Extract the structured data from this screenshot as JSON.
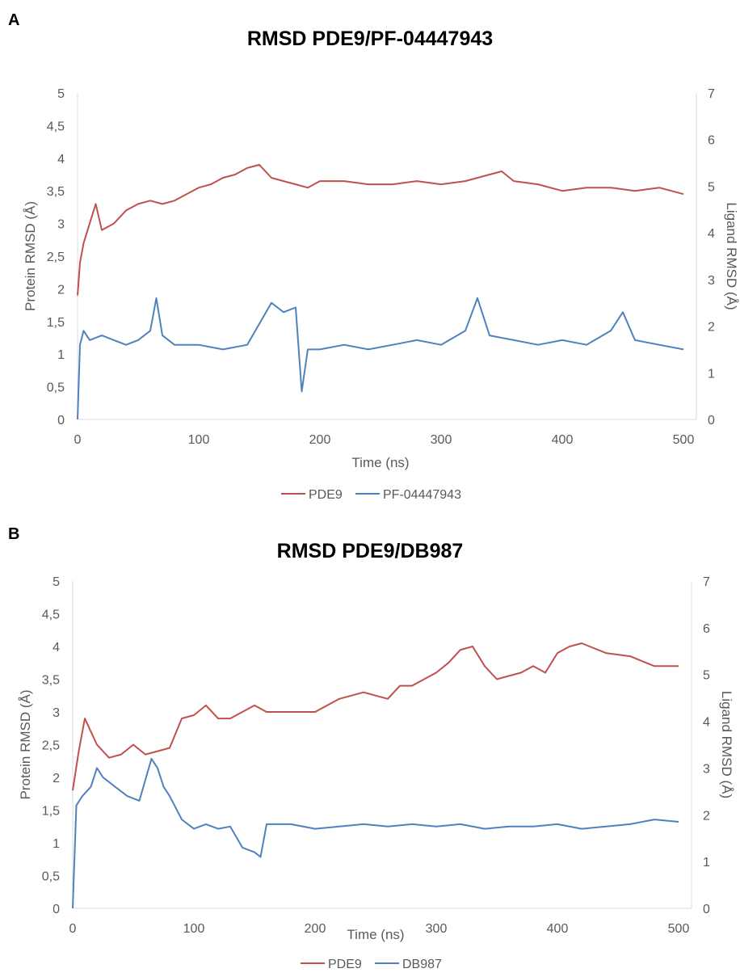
{
  "chart_data": [
    {
      "panel": "A",
      "type": "line",
      "title": "RMSD PDE9/PF-04447943",
      "xlabel": "Time (ns)",
      "ylabel_left": "Protein RMSD (Å)",
      "ylabel_right": "Ligand RMSD (Å)",
      "xlim": [
        0,
        500
      ],
      "ylim_left": [
        0,
        5
      ],
      "ylim_right": [
        0,
        7
      ],
      "x_ticks": [
        "0",
        "100",
        "200",
        "300",
        "400",
        "500"
      ],
      "y_left_ticks": [
        "0",
        "0,5",
        "1",
        "1,5",
        "2",
        "2,5",
        "3",
        "3,5",
        "4",
        "4,5",
        "5"
      ],
      "y_right_ticks": [
        "0",
        "1",
        "2",
        "3",
        "4",
        "5",
        "6",
        "7"
      ],
      "legend_position": "bottom",
      "series": [
        {
          "name": "PDE9",
          "axis": "left",
          "color": "#C0504D",
          "x": [
            0,
            2,
            5,
            10,
            15,
            20,
            30,
            40,
            50,
            60,
            70,
            80,
            90,
            100,
            110,
            120,
            130,
            140,
            150,
            160,
            170,
            180,
            190,
            200,
            220,
            240,
            260,
            280,
            300,
            320,
            340,
            350,
            360,
            380,
            400,
            420,
            440,
            460,
            480,
            500
          ],
          "values": [
            1.9,
            2.4,
            2.7,
            3.0,
            3.3,
            2.9,
            3.0,
            3.2,
            3.3,
            3.35,
            3.3,
            3.35,
            3.45,
            3.55,
            3.6,
            3.7,
            3.75,
            3.85,
            3.9,
            3.7,
            3.65,
            3.6,
            3.55,
            3.65,
            3.65,
            3.6,
            3.6,
            3.65,
            3.6,
            3.65,
            3.75,
            3.8,
            3.65,
            3.6,
            3.5,
            3.55,
            3.55,
            3.5,
            3.55,
            3.45
          ]
        },
        {
          "name": "PF-04447943",
          "axis": "right",
          "color": "#4F81BD",
          "x": [
            0,
            2,
            5,
            10,
            20,
            30,
            40,
            50,
            60,
            65,
            70,
            80,
            100,
            120,
            140,
            160,
            170,
            180,
            185,
            190,
            200,
            220,
            240,
            260,
            280,
            300,
            320,
            330,
            340,
            360,
            380,
            400,
            420,
            440,
            450,
            460,
            480,
            500
          ],
          "values": [
            0.0,
            1.6,
            1.9,
            1.7,
            1.8,
            1.7,
            1.6,
            1.7,
            1.9,
            2.6,
            1.8,
            1.6,
            1.6,
            1.5,
            1.6,
            2.5,
            2.3,
            2.4,
            0.6,
            1.5,
            1.5,
            1.6,
            1.5,
            1.6,
            1.7,
            1.6,
            1.9,
            2.6,
            1.8,
            1.7,
            1.6,
            1.7,
            1.6,
            1.9,
            2.3,
            1.7,
            1.6,
            1.5
          ]
        }
      ]
    },
    {
      "panel": "B",
      "type": "line",
      "title": "RMSD PDE9/DB987",
      "xlabel": "Time (ns)",
      "ylabel_left": "Protein RMSD (Å)",
      "ylabel_right": "Ligand RMSD (Å)",
      "xlim": [
        0,
        500
      ],
      "ylim_left": [
        0,
        5
      ],
      "ylim_right": [
        0,
        7
      ],
      "x_ticks": [
        "0",
        "100",
        "200",
        "300",
        "400",
        "500"
      ],
      "y_left_ticks": [
        "0",
        "0,5",
        "1",
        "1,5",
        "2",
        "2,5",
        "3",
        "3,5",
        "4",
        "4,5",
        "5"
      ],
      "y_right_ticks": [
        "0",
        "1",
        "2",
        "3",
        "4",
        "5",
        "6",
        "7"
      ],
      "legend_position": "bottom",
      "series": [
        {
          "name": "PDE9",
          "axis": "left",
          "color": "#C0504D",
          "x": [
            0,
            5,
            10,
            20,
            30,
            40,
            50,
            60,
            70,
            80,
            90,
            100,
            110,
            120,
            130,
            140,
            150,
            160,
            180,
            200,
            220,
            240,
            260,
            270,
            280,
            300,
            310,
            320,
            330,
            340,
            350,
            360,
            370,
            380,
            390,
            400,
            410,
            420,
            440,
            460,
            480,
            500
          ],
          "values": [
            1.8,
            2.4,
            2.9,
            2.5,
            2.3,
            2.35,
            2.5,
            2.35,
            2.4,
            2.45,
            2.9,
            2.95,
            3.1,
            2.9,
            2.9,
            3.0,
            3.1,
            3.0,
            3.0,
            3.0,
            3.2,
            3.3,
            3.2,
            3.4,
            3.4,
            3.6,
            3.75,
            3.95,
            4.0,
            3.7,
            3.5,
            3.55,
            3.6,
            3.7,
            3.6,
            3.9,
            4.0,
            4.05,
            3.9,
            3.85,
            3.7,
            3.7
          ]
        },
        {
          "name": "DB987",
          "axis": "right",
          "color": "#4F81BD",
          "x": [
            0,
            3,
            8,
            15,
            20,
            25,
            35,
            45,
            55,
            65,
            70,
            75,
            80,
            90,
            100,
            110,
            120,
            130,
            140,
            150,
            155,
            160,
            180,
            200,
            220,
            240,
            260,
            280,
            300,
            320,
            340,
            360,
            380,
            400,
            420,
            440,
            460,
            480,
            500
          ],
          "values": [
            0.0,
            2.2,
            2.4,
            2.6,
            3.0,
            2.8,
            2.6,
            2.4,
            2.3,
            3.2,
            3.0,
            2.6,
            2.4,
            1.9,
            1.7,
            1.8,
            1.7,
            1.75,
            1.3,
            1.2,
            1.1,
            1.8,
            1.8,
            1.7,
            1.75,
            1.8,
            1.75,
            1.8,
            1.75,
            1.8,
            1.7,
            1.75,
            1.75,
            1.8,
            1.7,
            1.75,
            1.8,
            1.9,
            1.85
          ]
        }
      ]
    }
  ]
}
